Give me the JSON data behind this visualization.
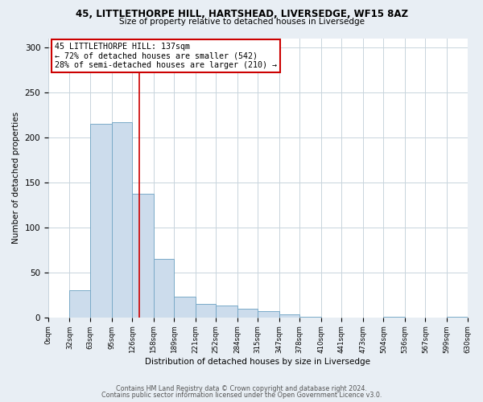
{
  "title": "45, LITTLETHORPE HILL, HARTSHEAD, LIVERSEDGE, WF15 8AZ",
  "subtitle": "Size of property relative to detached houses in Liversedge",
  "xlabel": "Distribution of detached houses by size in Liversedge",
  "ylabel": "Number of detached properties",
  "bin_edges": [
    0,
    32,
    63,
    95,
    126,
    158,
    189,
    221,
    252,
    284,
    315,
    347,
    378,
    410,
    441,
    473,
    504,
    536,
    567,
    599,
    630
  ],
  "bar_heights": [
    0,
    30,
    215,
    217,
    137,
    65,
    23,
    15,
    13,
    10,
    7,
    3,
    1,
    0,
    0,
    0,
    1,
    0,
    0,
    1
  ],
  "bar_color": "#ccdcec",
  "bar_edge_color": "#7aaac8",
  "property_line_x": 137,
  "property_line_color": "#cc0000",
  "annotation_text": "45 LITTLETHORPE HILL: 137sqm\n← 72% of detached houses are smaller (542)\n28% of semi-detached houses are larger (210) →",
  "annotation_box_color": "#cc0000",
  "ylim": [
    0,
    310
  ],
  "yticks": [
    0,
    50,
    100,
    150,
    200,
    250,
    300
  ],
  "footer_line1": "Contains HM Land Registry data © Crown copyright and database right 2024.",
  "footer_line2": "Contains public sector information licensed under the Open Government Licence v3.0.",
  "bg_color": "#e8eef4",
  "plot_bg_color": "#ffffff",
  "grid_color": "#c8d4dc"
}
